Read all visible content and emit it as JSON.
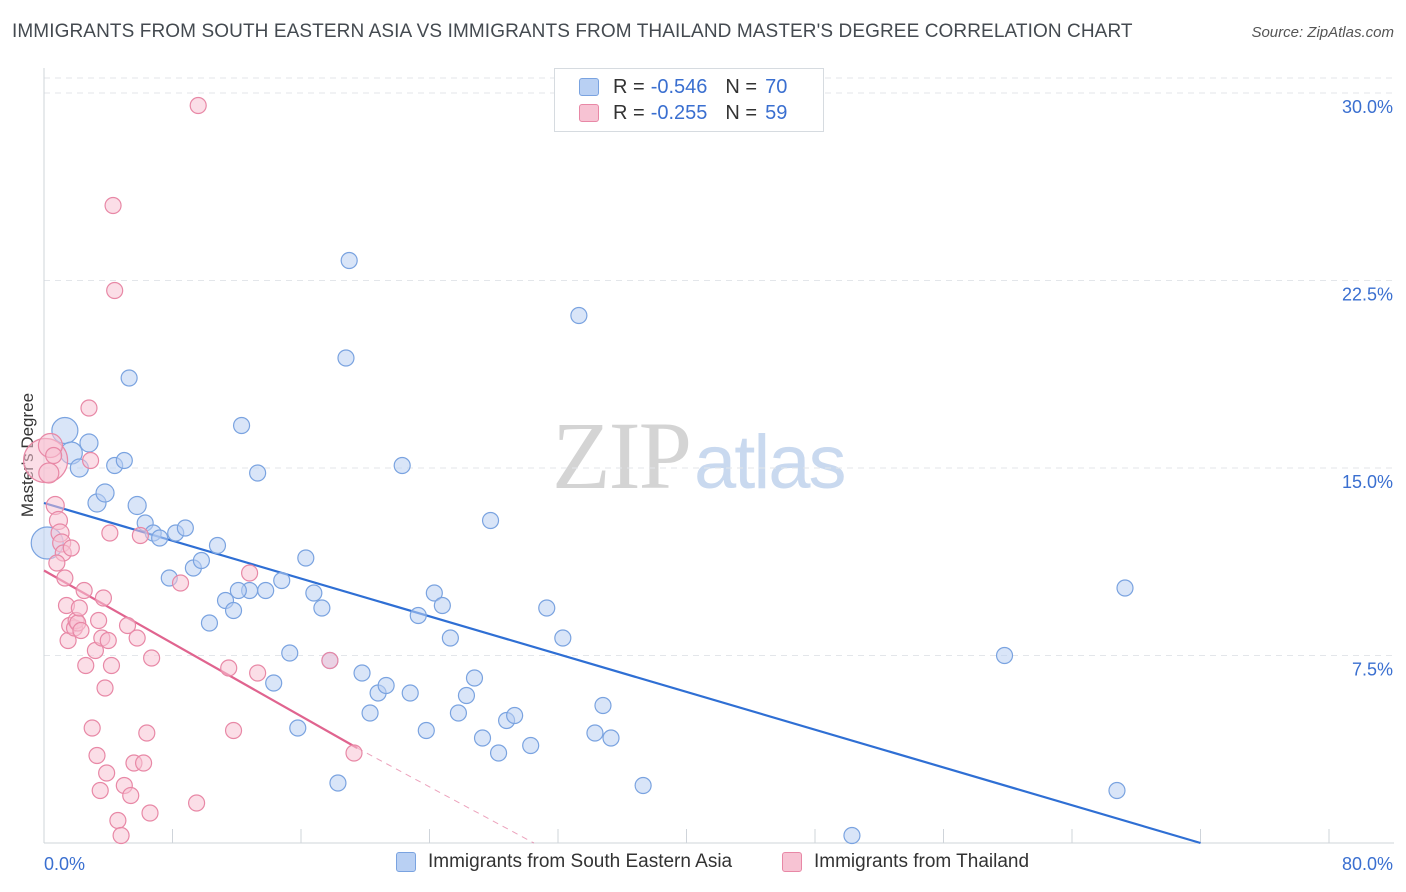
{
  "title": "IMMIGRANTS FROM SOUTH EASTERN ASIA VS IMMIGRANTS FROM THAILAND MASTER'S DEGREE CORRELATION CHART",
  "source": "Source: ZipAtlas.com",
  "watermark": {
    "zip": "ZIP",
    "atlas": "atlas"
  },
  "legend": {
    "rows": [
      {
        "r_label": "R = ",
        "r_value": "-0.546",
        "n_label": "N = ",
        "n_value": "70"
      },
      {
        "r_label": "R = ",
        "r_value": "-0.255",
        "n_label": "N = ",
        "n_value": "59"
      }
    ]
  },
  "colors": {
    "blue_fill": "#b9d0f3",
    "blue_stroke": "#7aa3e0",
    "blue_line": "#2f6fd4",
    "pink_fill": "#f7c3d3",
    "pink_stroke": "#e888a6",
    "pink_line": "#e0648f",
    "grid": "#e3e6ea",
    "axis_label": "#3a6fd0"
  },
  "chart_data": {
    "type": "scatter",
    "title": "IMMIGRANTS FROM SOUTH EASTERN ASIA VS IMMIGRANTS FROM THAILAND MASTER'S DEGREE CORRELATION CHART",
    "xlabel": "",
    "ylabel": "Master's Degree",
    "xlim": [
      0,
      80
    ],
    "ylim": [
      0,
      31
    ],
    "x_tick_labels": [
      "0.0%",
      "80.0%"
    ],
    "y_ticks": [
      7.5,
      15.0,
      22.5,
      30.0
    ],
    "y_tick_labels": [
      "7.5%",
      "15.0%",
      "22.5%",
      "30.0%"
    ],
    "grid": true,
    "legend_position": "bottom",
    "series": [
      {
        "name": "Immigrants from South Eastern Asia",
        "color": "#b9d0f3",
        "points": [
          [
            0.2,
            12.0,
            16
          ],
          [
            1.3,
            16.5,
            13
          ],
          [
            1.7,
            15.6,
            11
          ],
          [
            2.2,
            15.0,
            9
          ],
          [
            2.8,
            16.0,
            9
          ],
          [
            3.3,
            13.6,
            9
          ],
          [
            3.8,
            14.0,
            9
          ],
          [
            4.4,
            15.1,
            8
          ],
          [
            5.0,
            15.3,
            8
          ],
          [
            5.3,
            18.6,
            8
          ],
          [
            5.8,
            13.5,
            9
          ],
          [
            6.3,
            12.8,
            8
          ],
          [
            6.8,
            12.4,
            8
          ],
          [
            7.2,
            12.2,
            8
          ],
          [
            7.8,
            10.6,
            8
          ],
          [
            8.2,
            12.4,
            8
          ],
          [
            8.8,
            12.6,
            8
          ],
          [
            9.3,
            11.0,
            8
          ],
          [
            9.8,
            11.3,
            8
          ],
          [
            10.3,
            8.8,
            8
          ],
          [
            10.8,
            11.9,
            8
          ],
          [
            11.3,
            9.7,
            8
          ],
          [
            11.8,
            9.3,
            8
          ],
          [
            12.3,
            16.7,
            8
          ],
          [
            12.8,
            10.1,
            8
          ],
          [
            13.3,
            14.8,
            8
          ],
          [
            13.8,
            10.1,
            8
          ],
          [
            14.3,
            6.4,
            8
          ],
          [
            14.8,
            10.5,
            8
          ],
          [
            15.3,
            7.6,
            8
          ],
          [
            15.8,
            4.6,
            8
          ],
          [
            16.3,
            11.4,
            8
          ],
          [
            16.8,
            10.0,
            8
          ],
          [
            17.3,
            9.4,
            8
          ],
          [
            17.8,
            7.3,
            8
          ],
          [
            18.3,
            2.4,
            8
          ],
          [
            18.8,
            19.4,
            8
          ],
          [
            19.0,
            23.3,
            8
          ],
          [
            19.8,
            6.8,
            8
          ],
          [
            20.3,
            5.2,
            8
          ],
          [
            20.8,
            6.0,
            8
          ],
          [
            21.3,
            6.3,
            8
          ],
          [
            22.3,
            15.1,
            8
          ],
          [
            22.8,
            6.0,
            8
          ],
          [
            23.3,
            9.1,
            8
          ],
          [
            23.8,
            4.5,
            8
          ],
          [
            24.3,
            10.0,
            8
          ],
          [
            24.8,
            9.5,
            8
          ],
          [
            25.3,
            8.2,
            8
          ],
          [
            25.8,
            5.2,
            8
          ],
          [
            26.3,
            5.9,
            8
          ],
          [
            26.8,
            6.6,
            8
          ],
          [
            27.3,
            4.2,
            8
          ],
          [
            27.8,
            12.9,
            8
          ],
          [
            28.3,
            3.6,
            8
          ],
          [
            28.8,
            4.9,
            8
          ],
          [
            29.3,
            5.1,
            8
          ],
          [
            30.3,
            3.9,
            8
          ],
          [
            31.3,
            9.4,
            8
          ],
          [
            32.3,
            8.2,
            8
          ],
          [
            33.3,
            21.1,
            8
          ],
          [
            34.3,
            4.4,
            8
          ],
          [
            34.8,
            5.5,
            8
          ],
          [
            35.3,
            4.2,
            8
          ],
          [
            37.3,
            2.3,
            8
          ],
          [
            50.3,
            0.3,
            8
          ],
          [
            59.8,
            7.5,
            8
          ],
          [
            66.8,
            2.1,
            8
          ],
          [
            67.3,
            10.2,
            8
          ],
          [
            12.1,
            10.1,
            8
          ]
        ],
        "trendline": {
          "x": [
            0,
            72
          ],
          "y": [
            13.6,
            0
          ]
        }
      },
      {
        "name": "Immigrants from Thailand",
        "color": "#f7c3d3",
        "points": [
          [
            0.1,
            15.3,
            22
          ],
          [
            0.4,
            15.9,
            12
          ],
          [
            0.7,
            13.5,
            9
          ],
          [
            0.9,
            12.9,
            9
          ],
          [
            1.0,
            12.4,
            9
          ],
          [
            1.1,
            12.0,
            9
          ],
          [
            1.2,
            11.6,
            8
          ],
          [
            1.3,
            10.6,
            8
          ],
          [
            1.4,
            9.5,
            8
          ],
          [
            1.5,
            8.1,
            8
          ],
          [
            1.6,
            8.7,
            8
          ],
          [
            1.7,
            11.8,
            8
          ],
          [
            1.9,
            8.6,
            8
          ],
          [
            2.0,
            8.9,
            8
          ],
          [
            2.1,
            8.8,
            8
          ],
          [
            2.3,
            8.5,
            8
          ],
          [
            2.5,
            10.1,
            8
          ],
          [
            2.6,
            7.1,
            8
          ],
          [
            2.8,
            17.4,
            8
          ],
          [
            2.9,
            15.3,
            8
          ],
          [
            3.0,
            4.6,
            8
          ],
          [
            3.2,
            7.7,
            8
          ],
          [
            3.3,
            3.5,
            8
          ],
          [
            3.4,
            8.9,
            8
          ],
          [
            3.5,
            2.1,
            8
          ],
          [
            3.6,
            8.2,
            8
          ],
          [
            3.7,
            9.8,
            8
          ],
          [
            3.9,
            2.8,
            8
          ],
          [
            4.0,
            8.1,
            8
          ],
          [
            4.1,
            12.4,
            8
          ],
          [
            4.2,
            7.1,
            8
          ],
          [
            4.3,
            25.5,
            8
          ],
          [
            4.4,
            22.1,
            8
          ],
          [
            4.6,
            0.9,
            8
          ],
          [
            4.8,
            0.3,
            8
          ],
          [
            5.0,
            2.3,
            8
          ],
          [
            5.2,
            8.7,
            8
          ],
          [
            5.4,
            1.9,
            8
          ],
          [
            5.6,
            3.2,
            8
          ],
          [
            5.8,
            8.2,
            8
          ],
          [
            6.0,
            12.3,
            8
          ],
          [
            6.2,
            3.2,
            8
          ],
          [
            6.4,
            4.4,
            8
          ],
          [
            6.6,
            1.2,
            8
          ],
          [
            6.7,
            7.4,
            8
          ],
          [
            8.5,
            10.4,
            8
          ],
          [
            9.5,
            1.6,
            8
          ],
          [
            9.6,
            29.5,
            8
          ],
          [
            11.5,
            7.0,
            8
          ],
          [
            11.8,
            4.5,
            8
          ],
          [
            12.8,
            10.8,
            8
          ],
          [
            13.3,
            6.8,
            8
          ],
          [
            17.8,
            7.3,
            8
          ],
          [
            19.3,
            3.6,
            8
          ],
          [
            0.3,
            14.8,
            10
          ],
          [
            0.6,
            15.5,
            8
          ],
          [
            0.8,
            11.2,
            8
          ],
          [
            2.2,
            9.4,
            8
          ],
          [
            3.8,
            6.2,
            8
          ]
        ],
        "trendline": {
          "x": [
            0,
            19.5
          ],
          "y": [
            10.9,
            3.8
          ]
        },
        "trendline_extension": {
          "x": [
            19.5,
            30.5
          ],
          "y": [
            3.8,
            0
          ]
        }
      }
    ]
  }
}
